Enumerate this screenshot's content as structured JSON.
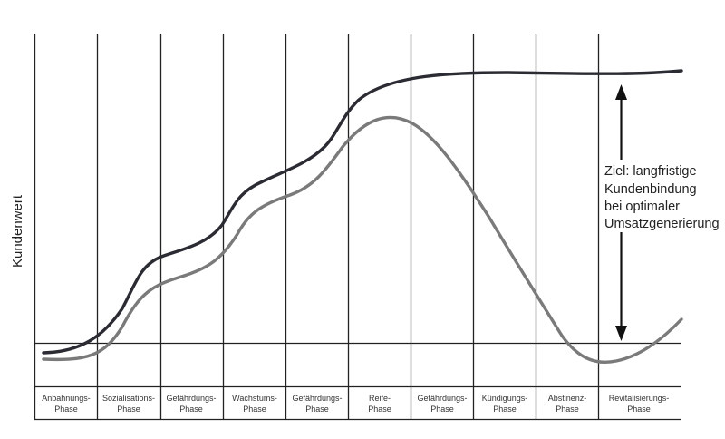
{
  "diagram": {
    "ylabel": "Kundenwert",
    "phases": [
      {
        "line1": "Anbahnungs-",
        "line2": "Phase"
      },
      {
        "line1": "Sozialisations-",
        "line2": "Phase"
      },
      {
        "line1": "Gefährdungs-",
        "line2": "Phase"
      },
      {
        "line1": "Wachstums-",
        "line2": "Phase"
      },
      {
        "line1": "Gefährdungs-",
        "line2": "Phase"
      },
      {
        "line1": "Reife-",
        "line2": "Phase"
      },
      {
        "line1": "Gefährdungs-",
        "line2": "Phase"
      },
      {
        "line1": "Kündigungs-",
        "line2": "Phase"
      },
      {
        "line1": "Abstinenz-",
        "line2": "Phase"
      },
      {
        "line1": "Revitalisierungs-",
        "line2": "Phase"
      }
    ],
    "annotation": [
      "Ziel: langfristige",
      "Kundenbindung",
      "bei optimaler",
      "Umsatzgenerierung"
    ],
    "colors": {
      "upper_curve": "#2b2b33",
      "lower_curve": "#7a7a7a",
      "grid": "#222222"
    }
  }
}
